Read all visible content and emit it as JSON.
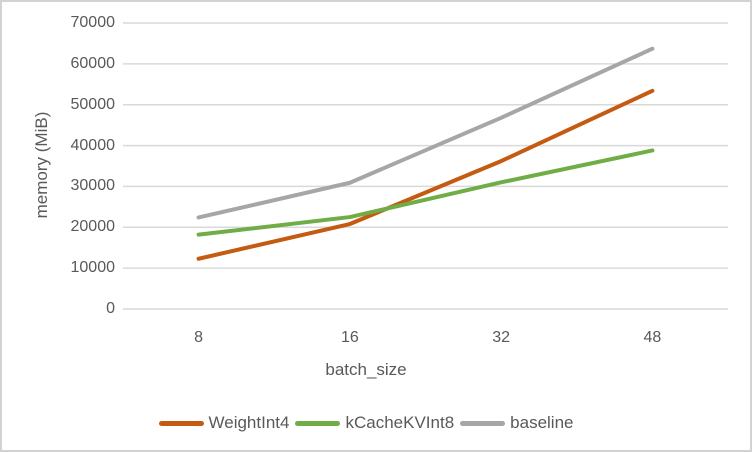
{
  "chart_data": {
    "type": "line",
    "title": "",
    "xlabel": "batch_size",
    "ylabel": "memory (MiB)",
    "categories": [
      "8",
      "16",
      "32",
      "48"
    ],
    "series": [
      {
        "name": "WeightInt4",
        "color": "#c55a11",
        "values": [
          12300,
          20800,
          36200,
          53400
        ]
      },
      {
        "name": "kCacheKVInt8",
        "color": "#70ad47",
        "values": [
          18200,
          22500,
          31000,
          38800
        ]
      },
      {
        "name": "baseline",
        "color": "#a6a6a6",
        "values": [
          22400,
          30900,
          46800,
          63700
        ]
      }
    ],
    "ylim": [
      0,
      70000
    ],
    "yticks": [
      0,
      10000,
      20000,
      30000,
      40000,
      50000,
      60000,
      70000
    ],
    "grid": "horizontal",
    "legend_position": "bottom-center",
    "line_width": 4
  },
  "style": {
    "gridline_color": "#d9d9d9",
    "text_color": "#595959",
    "background": "#ffffff",
    "border_color": "#d2d2d2"
  }
}
